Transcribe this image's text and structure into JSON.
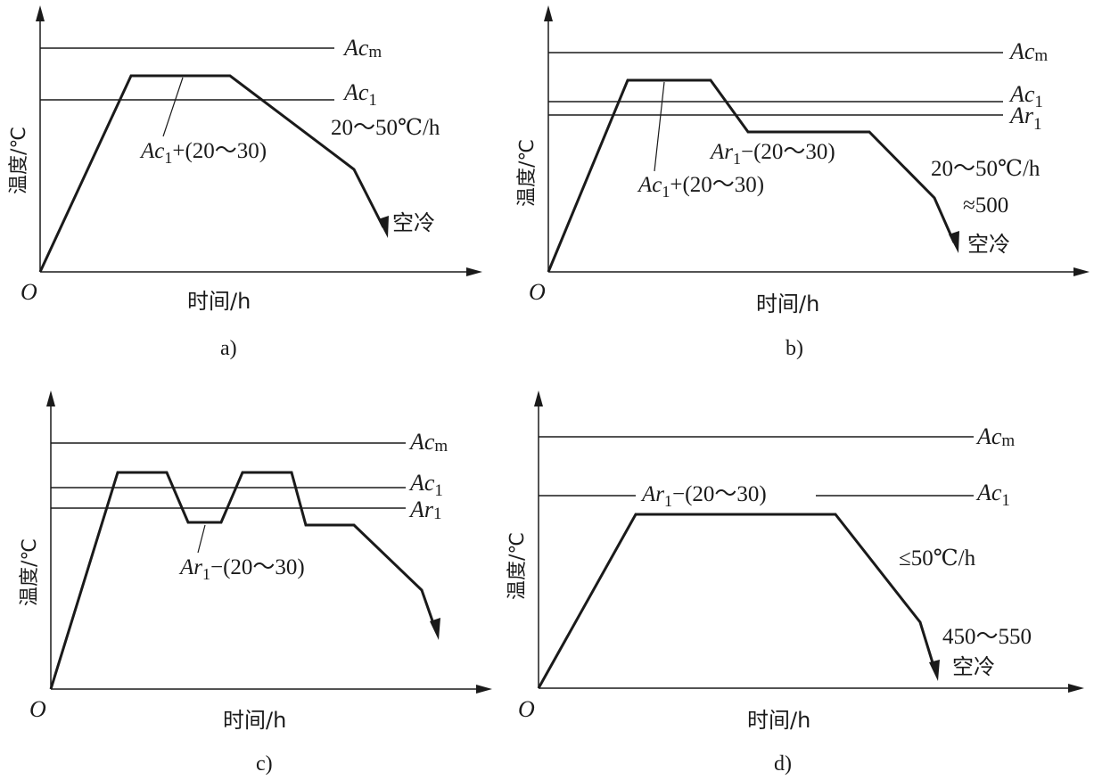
{
  "panels": [
    {
      "caption": "a)",
      "origin": "O",
      "xlabel": "时间/h",
      "ylabel": "温度/℃",
      "refs": [
        {
          "main": "Ac",
          "sub": "m"
        },
        {
          "main": "Ac",
          "sub": "1"
        }
      ],
      "notes": {
        "hold": {
          "main": "Ac",
          "sub": "1",
          "tail": "+(20～30)"
        },
        "rate": "20～50℃/h",
        "cool": "空冷"
      }
    },
    {
      "caption": "b)",
      "origin": "O",
      "xlabel": "时间/h",
      "ylabel": "温度/℃",
      "refs": [
        {
          "main": "Ac",
          "sub": "m"
        },
        {
          "main": "Ac",
          "sub": "1"
        },
        {
          "main": "Ar",
          "sub": "1"
        }
      ],
      "notes": {
        "hold1": {
          "main": "Ac",
          "sub": "1",
          "tail": "+(20～30)"
        },
        "hold2": {
          "main": "Ar",
          "sub": "1",
          "tail": "−(20～30)"
        },
        "rate": "20～50℃/h",
        "temp": "≈500",
        "cool": "空冷"
      }
    },
    {
      "caption": "c)",
      "origin": "O",
      "xlabel": "时间/h",
      "ylabel": "温度/℃",
      "refs": [
        {
          "main": "Ac",
          "sub": "m"
        },
        {
          "main": "Ac",
          "sub": "1"
        },
        {
          "main": "Ar",
          "sub": "1"
        }
      ],
      "notes": {
        "hold": {
          "main": "Ar",
          "sub": "1",
          "tail": "−(20～30)"
        }
      }
    },
    {
      "caption": "d)",
      "origin": "O",
      "xlabel": "时间/h",
      "ylabel": "温度/℃",
      "refs": [
        {
          "main": "Ac",
          "sub": "m"
        },
        {
          "main": "Ac",
          "sub": "1"
        }
      ],
      "notes": {
        "hold": {
          "main": "Ar",
          "sub": "1",
          "tail": "−(20～30)"
        },
        "rate": "≤50℃/h",
        "temp": "450～550",
        "cool": "空冷"
      }
    }
  ]
}
